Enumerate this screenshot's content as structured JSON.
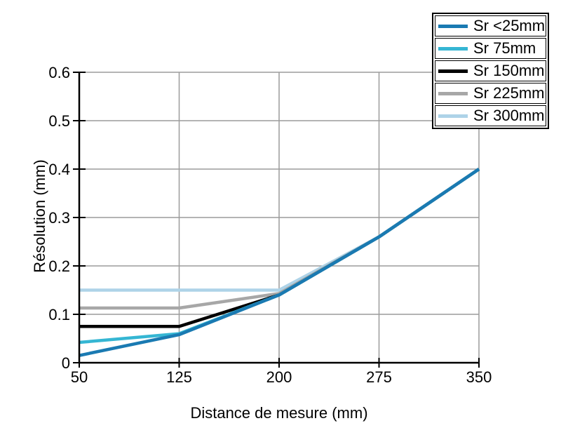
{
  "figure": {
    "background": "#ffffff",
    "text_color": "#000000"
  },
  "chart_data": {
    "type": "line",
    "title": "",
    "xlabel": "Distance de mesure (mm)",
    "ylabel": "Résolution (mm)",
    "x": [
      50,
      125,
      200,
      275,
      350
    ],
    "x_ticks": [
      50,
      125,
      200,
      275,
      350
    ],
    "y_ticks": [
      0,
      0.1,
      0.2,
      0.3,
      0.4,
      0.5,
      0.6
    ],
    "xlim": [
      50,
      350
    ],
    "ylim": [
      0,
      0.6
    ],
    "grid": true,
    "grid_color": "#9c9c9c",
    "axis_color": "#000000",
    "legend_position": "top-right",
    "series": [
      {
        "name": "Sr <25mm",
        "color": "#1a7ab2",
        "values": [
          0.015,
          0.058,
          0.14,
          0.26,
          0.4
        ]
      },
      {
        "name": "Sr 75mm",
        "color": "#35b6d3",
        "values": [
          0.042,
          0.06,
          0.14,
          0.26,
          0.4
        ]
      },
      {
        "name": "Sr 150mm",
        "color": "#000000",
        "values": [
          0.075,
          0.075,
          0.14,
          0.26,
          0.4
        ]
      },
      {
        "name": "Sr 225mm",
        "color": "#a7a7a7",
        "values": [
          0.113,
          0.113,
          0.143,
          0.26,
          0.4
        ]
      },
      {
        "name": "Sr 300mm",
        "color": "#aed3e8",
        "values": [
          0.15,
          0.15,
          0.15,
          0.26,
          0.4
        ]
      }
    ]
  }
}
